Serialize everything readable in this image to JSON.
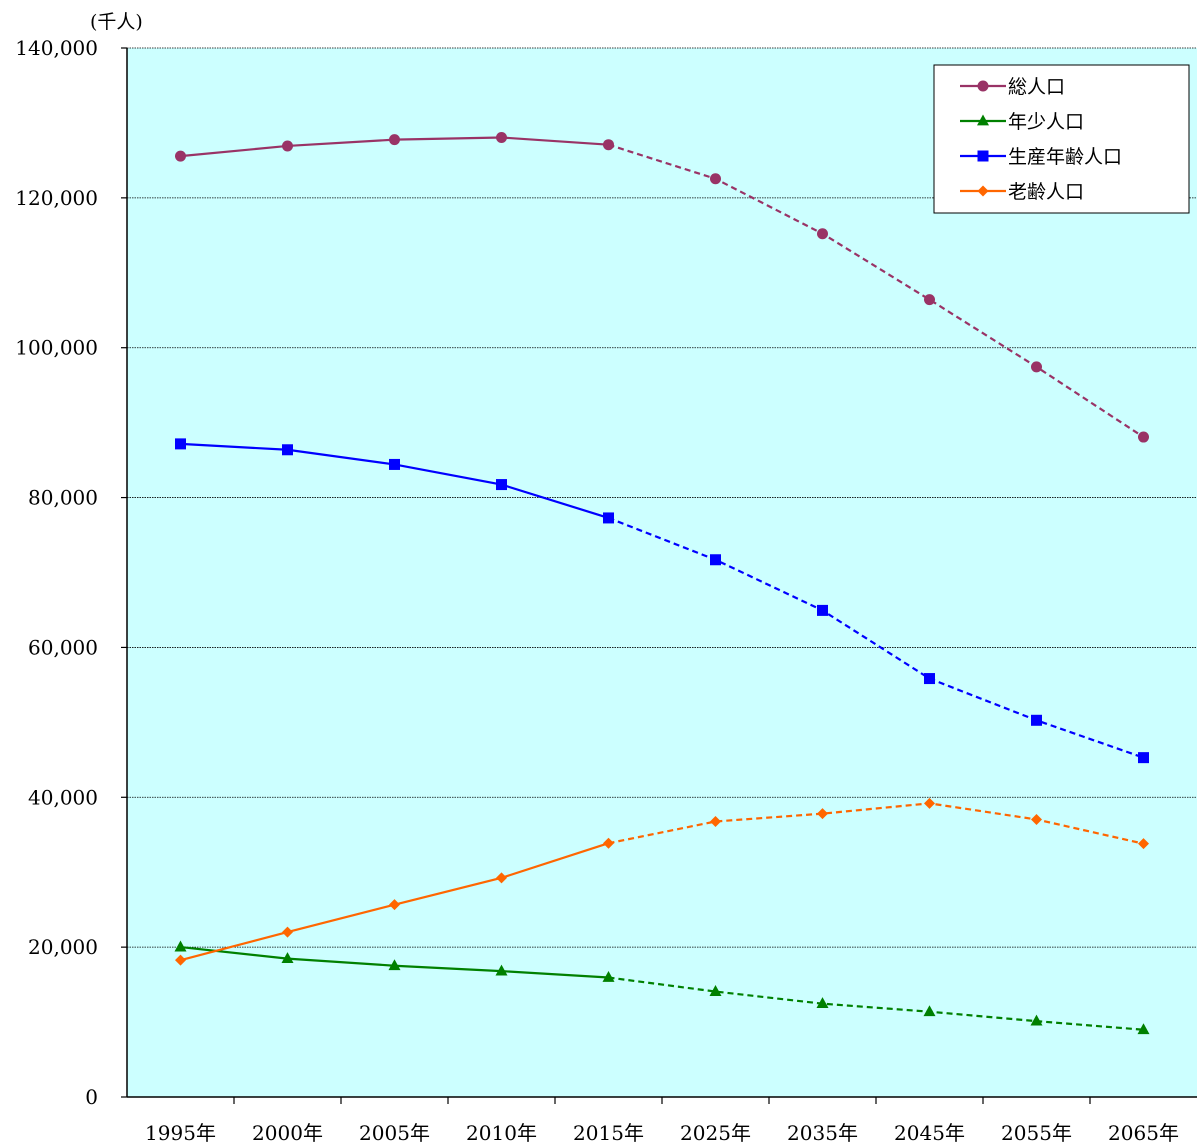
{
  "chart_data": {
    "type": "line",
    "unit_label": "(千人)",
    "ylim": [
      0,
      140000
    ],
    "yticks": [
      "0",
      "20,000",
      "40,000",
      "60,000",
      "80,000",
      "100,000",
      "120,000",
      "140,000"
    ],
    "grid": true,
    "background_color": "#ccffff",
    "categories": [
      "1995年",
      "2000年",
      "2005年",
      "2010年",
      "2015年",
      "2025年",
      "2035年",
      "2045年",
      "2055年",
      "2065年"
    ],
    "projection_start_index": 4,
    "legend_position": "top-right",
    "series": [
      {
        "name": "総人口",
        "color": "#993366",
        "marker": "circle",
        "values": [
          125570,
          126926,
          127768,
          128057,
          127095,
          122544,
          115216,
          106421,
          97441,
          88077
        ]
      },
      {
        "name": "年少人口",
        "color": "#008000",
        "marker": "triangle",
        "values": [
          20014,
          18472,
          17521,
          16803,
          15945,
          14073,
          12457,
          11384,
          10123,
          8975
        ]
      },
      {
        "name": "生産年齢人口",
        "color": "#0000ff",
        "marker": "square",
        "values": [
          87165,
          86380,
          84422,
          81735,
          77282,
          71701,
          64942,
          55845,
          50276,
          45291
        ]
      },
      {
        "name": "老齢人口",
        "color": "#ff6600",
        "marker": "diamond",
        "values": [
          18261,
          22005,
          25672,
          29246,
          33868,
          36771,
          37817,
          39192,
          37042,
          33810
        ]
      }
    ]
  }
}
